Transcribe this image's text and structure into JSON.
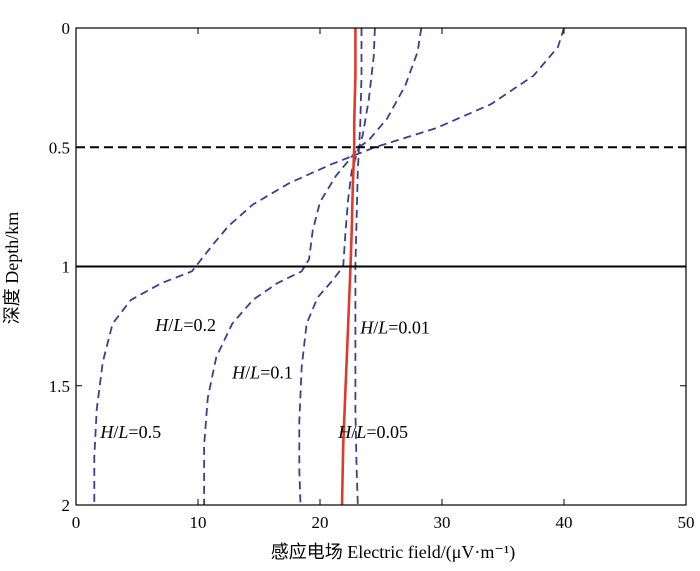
{
  "chart_data": {
    "type": "line",
    "title": "",
    "xlabel": "感应电场 Electric field/(μV·m⁻¹)",
    "ylabel": "深度 Depth/km",
    "xlim": [
      0,
      50
    ],
    "ylim": [
      0,
      2
    ],
    "y_inverted": true,
    "x_ticks": [
      "0",
      "10",
      "20",
      "30",
      "40",
      "50"
    ],
    "y_ticks": [
      "0",
      "0.5",
      "1",
      "1.5",
      "2"
    ],
    "grid": false,
    "reference_lines": [
      {
        "depth": 0.5,
        "style": "dashed",
        "color": "#000000"
      },
      {
        "depth": 1.0,
        "style": "solid",
        "color": "#000000"
      }
    ],
    "series": [
      {
        "color": "#3a3f8f",
        "style": "dashed",
        "points": [
          [
            40.0,
            0.0
          ],
          [
            39.5,
            0.08
          ],
          [
            37.5,
            0.2
          ],
          [
            34.0,
            0.32
          ],
          [
            29.5,
            0.42
          ],
          [
            24.5,
            0.5
          ],
          [
            21.0,
            0.57
          ],
          [
            17.5,
            0.65
          ],
          [
            14.5,
            0.74
          ],
          [
            12.5,
            0.83
          ],
          [
            11.2,
            0.91
          ],
          [
            9.5,
            1.02
          ],
          [
            7.0,
            1.07
          ],
          [
            4.5,
            1.14
          ],
          [
            3.0,
            1.24
          ],
          [
            2.2,
            1.4
          ],
          [
            1.7,
            1.6
          ],
          [
            1.5,
            1.8
          ],
          [
            1.5,
            2.0
          ]
        ]
      },
      {
        "color": "#3a3f8f",
        "style": "dashed",
        "points": [
          [
            28.3,
            0.0
          ],
          [
            28.0,
            0.1
          ],
          [
            27.0,
            0.24
          ],
          [
            25.5,
            0.38
          ],
          [
            24.0,
            0.47
          ],
          [
            23.2,
            0.5
          ],
          [
            22.6,
            0.54
          ],
          [
            21.3,
            0.62
          ],
          [
            20.0,
            0.73
          ],
          [
            19.4,
            0.85
          ],
          [
            19.1,
            0.97
          ],
          [
            18.5,
            1.02
          ],
          [
            16.5,
            1.07
          ],
          [
            14.5,
            1.14
          ],
          [
            12.8,
            1.24
          ],
          [
            11.5,
            1.38
          ],
          [
            10.8,
            1.55
          ],
          [
            10.5,
            1.75
          ],
          [
            10.5,
            2.0
          ]
        ]
      },
      {
        "color": "#3a3f8f",
        "style": "dashed",
        "points": [
          [
            24.5,
            0.0
          ],
          [
            24.4,
            0.12
          ],
          [
            24.0,
            0.3
          ],
          [
            23.5,
            0.45
          ],
          [
            23.2,
            0.5
          ],
          [
            23.0,
            0.53
          ],
          [
            22.6,
            0.6
          ],
          [
            22.3,
            0.72
          ],
          [
            22.1,
            0.85
          ],
          [
            21.9,
            1.0
          ],
          [
            21.0,
            1.06
          ],
          [
            19.8,
            1.13
          ],
          [
            18.9,
            1.24
          ],
          [
            18.5,
            1.42
          ],
          [
            18.3,
            1.65
          ],
          [
            18.3,
            1.85
          ],
          [
            18.4,
            2.0
          ]
        ]
      },
      {
        "color": "#3a3f8f",
        "style": "dashed",
        "points": [
          [
            23.4,
            0.0
          ],
          [
            23.4,
            0.2
          ],
          [
            23.3,
            0.4
          ],
          [
            23.2,
            0.5
          ],
          [
            23.1,
            0.6
          ],
          [
            23.0,
            0.8
          ],
          [
            22.9,
            1.0
          ],
          [
            22.9,
            1.3
          ],
          [
            22.9,
            1.6
          ],
          [
            23.0,
            1.85
          ],
          [
            23.1,
            2.0
          ]
        ]
      },
      {
        "color": "#e03a2a",
        "style": "solid",
        "points": [
          [
            22.9,
            0.0
          ],
          [
            22.9,
            0.2
          ],
          [
            22.8,
            0.4
          ],
          [
            22.8,
            0.5
          ],
          [
            22.7,
            0.65
          ],
          [
            22.6,
            0.85
          ],
          [
            22.5,
            1.0
          ],
          [
            22.3,
            1.25
          ],
          [
            22.1,
            1.5
          ],
          [
            21.9,
            1.75
          ],
          [
            21.8,
            2.0
          ]
        ]
      }
    ],
    "annotations": [
      {
        "var": "H/L",
        "value": "=0.2",
        "x": 6.5,
        "y": 1.27
      },
      {
        "var": "H/L",
        "value": "=0.1",
        "x": 12.8,
        "y": 1.47
      },
      {
        "var": "H/L",
        "value": "=0.5",
        "x": 2.0,
        "y": 1.72
      },
      {
        "var": "H/L",
        "value": "=0.01",
        "x": 23.3,
        "y": 1.28
      },
      {
        "var": "H/L",
        "value": "=0.05",
        "x": 21.5,
        "y": 1.72
      }
    ]
  }
}
